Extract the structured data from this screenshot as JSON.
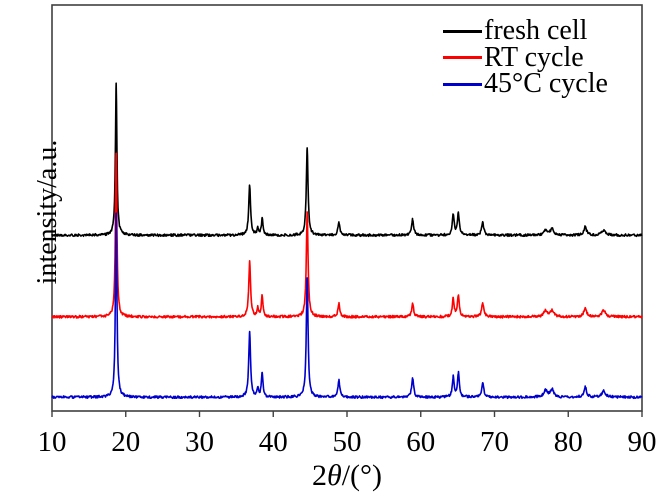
{
  "figure": {
    "background": "#ffffff",
    "ylabel": "intensity/a.u.",
    "xlabel_prefix": "2",
    "xlabel_theta": "θ",
    "xlabel_suffix": "/(°)"
  },
  "legend": {
    "items": [
      {
        "label": "fresh cell",
        "color": "#000000"
      },
      {
        "label": "RT cycle",
        "color": "#ff0000"
      },
      {
        "label": "45°C cycle",
        "color": "#0000cd"
      }
    ]
  },
  "chart_data": {
    "type": "line",
    "title": "",
    "xlabel": "2θ/(°)",
    "ylabel": "intensity/a.u.",
    "xlim": [
      10,
      90
    ],
    "xticks": [
      10,
      20,
      30,
      40,
      50,
      60,
      70,
      80,
      90
    ],
    "x_unit": "degrees 2-theta",
    "y_unit": "arbitrary units, traces vertically offset",
    "grid": false,
    "legend_position": "top-right inside plot",
    "frame_color": "#404040",
    "noise_amplitude": 0.012,
    "series": [
      {
        "name": "fresh cell",
        "color": "#000000",
        "baseline_offset": 0.433,
        "peaks": [
          [
            18.7,
            0.374,
            0.12
          ],
          [
            36.8,
            0.123,
            0.15
          ],
          [
            37.9,
            0.017,
            0.12
          ],
          [
            38.5,
            0.039,
            0.13
          ],
          [
            44.6,
            0.214,
            0.14
          ],
          [
            48.9,
            0.032,
            0.15
          ],
          [
            58.9,
            0.039,
            0.16
          ],
          [
            64.4,
            0.049,
            0.15
          ],
          [
            65.1,
            0.054,
            0.15
          ],
          [
            68.4,
            0.03,
            0.18
          ],
          [
            76.9,
            0.012,
            0.28
          ],
          [
            77.8,
            0.015,
            0.28
          ],
          [
            82.3,
            0.02,
            0.22
          ],
          [
            84.8,
            0.012,
            0.3
          ]
        ]
      },
      {
        "name": "RT cycle",
        "color": "#ff0000",
        "baseline_offset": 0.232,
        "peaks": [
          [
            18.7,
            0.404,
            0.12
          ],
          [
            36.8,
            0.135,
            0.15
          ],
          [
            37.9,
            0.02,
            0.12
          ],
          [
            38.5,
            0.052,
            0.13
          ],
          [
            44.6,
            0.256,
            0.14
          ],
          [
            48.9,
            0.032,
            0.15
          ],
          [
            58.9,
            0.032,
            0.16
          ],
          [
            64.4,
            0.044,
            0.15
          ],
          [
            65.1,
            0.052,
            0.15
          ],
          [
            68.4,
            0.032,
            0.18
          ],
          [
            76.9,
            0.015,
            0.28
          ],
          [
            77.8,
            0.015,
            0.28
          ],
          [
            82.3,
            0.022,
            0.22
          ],
          [
            84.8,
            0.015,
            0.3
          ]
        ]
      },
      {
        "name": "45°C cycle",
        "color": "#0000cd",
        "baseline_offset": 0.034,
        "peaks": [
          [
            18.7,
            0.456,
            0.12
          ],
          [
            36.8,
            0.16,
            0.15
          ],
          [
            37.9,
            0.022,
            0.12
          ],
          [
            38.5,
            0.059,
            0.13
          ],
          [
            44.6,
            0.296,
            0.14
          ],
          [
            48.9,
            0.042,
            0.15
          ],
          [
            58.9,
            0.047,
            0.16
          ],
          [
            64.4,
            0.049,
            0.15
          ],
          [
            65.1,
            0.059,
            0.15
          ],
          [
            68.4,
            0.034,
            0.18
          ],
          [
            76.9,
            0.017,
            0.28
          ],
          [
            77.8,
            0.02,
            0.28
          ],
          [
            82.3,
            0.025,
            0.22
          ],
          [
            84.8,
            0.015,
            0.3
          ]
        ]
      }
    ]
  }
}
